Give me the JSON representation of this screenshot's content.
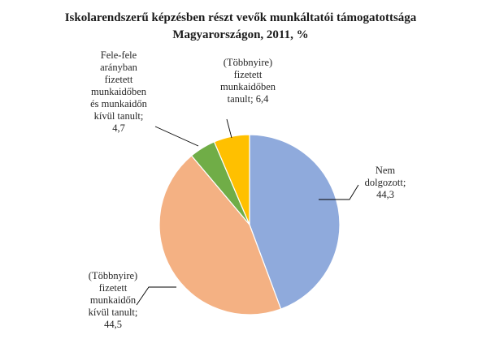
{
  "chart_data": {
    "type": "pie",
    "title_lines": [
      "Iskolarendszerű képzésben részt vevők munkáltatói támogatottsága",
      "Magyarországon, 2011, %"
    ],
    "slices": [
      {
        "label_lines": [
          "Nem",
          "dolgozott;",
          "44,3"
        ],
        "value": 44.3,
        "color": "#8FAADC"
      },
      {
        "label_lines": [
          "(Többnyire)",
          "fizetett",
          "munkaidőn",
          "kívül tanult;",
          "44,5"
        ],
        "value": 44.5,
        "color": "#F4B183"
      },
      {
        "label_lines": [
          "Fele-fele",
          "arányban",
          "fizetett",
          "munkaidőben",
          "és munkaidőn",
          "kívül tanult;",
          "4,7"
        ],
        "value": 4.7,
        "color": "#70AD47"
      },
      {
        "label_lines": [
          "(Többnyire)",
          "fizetett",
          "munkaidőben",
          "tanult; 6,4"
        ],
        "value": 6.4,
        "color": "#FFC000"
      }
    ],
    "start_angle_deg": 0,
    "direction": "clockwise",
    "legend": "none",
    "data_labels": "outside-with-leader-lines"
  }
}
